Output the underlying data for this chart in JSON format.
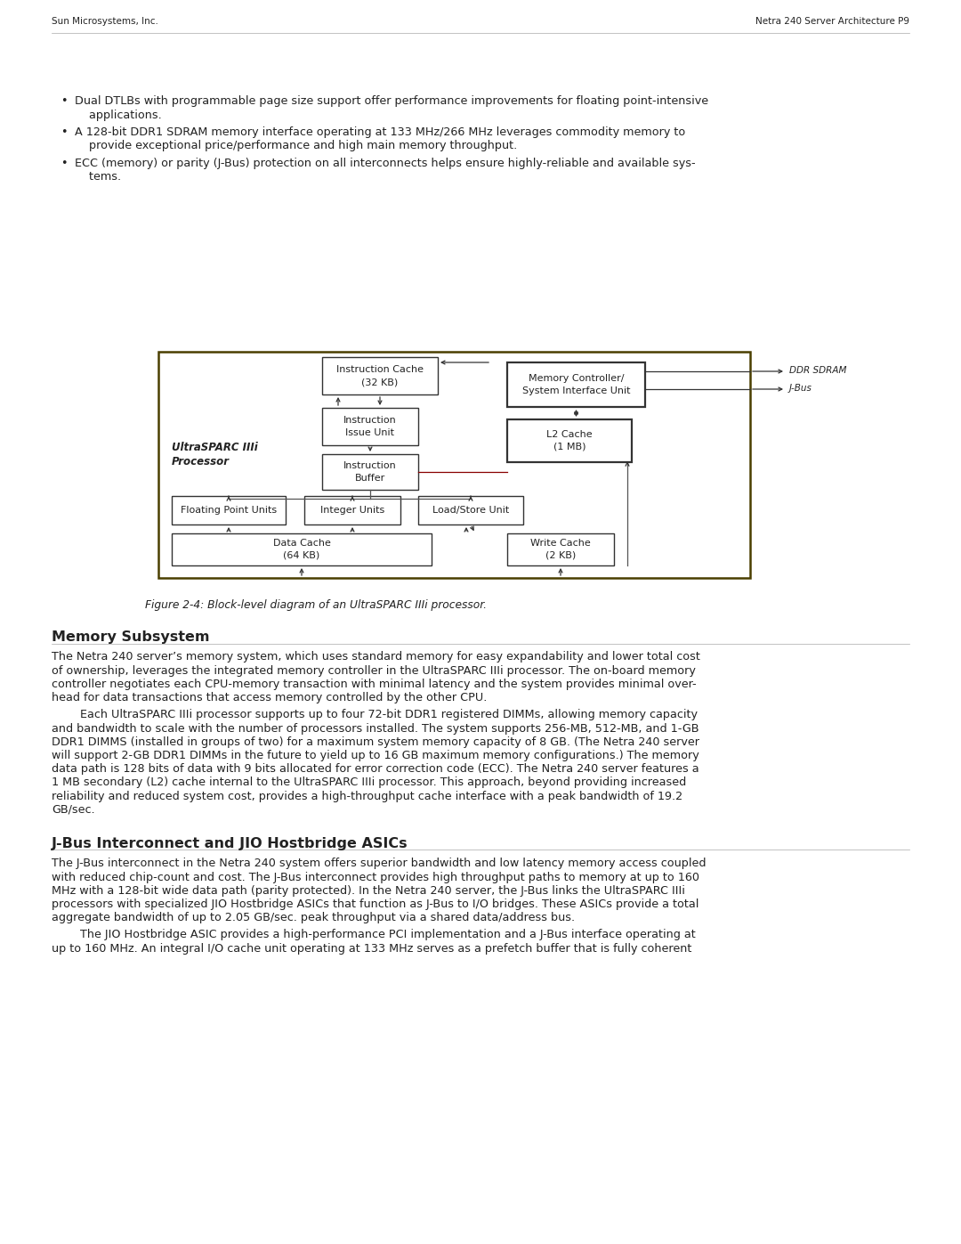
{
  "header_left": "Sun Microsystems, Inc.",
  "header_right": "Netra 240 Server Architecture P9",
  "bg_color": "#ffffff",
  "text_color": "#222222",
  "bullet1_line1": "Dual DTLBs with programmable page size support offer performance improvements for floating point-intensive",
  "bullet1_line2": "    applications.",
  "bullet2_line1": "A 128-bit DDR1 SDRAM memory interface operating at 133 MHz/266 MHz leverages commodity memory to",
  "bullet2_line2": "    provide exceptional price/performance and high main memory throughput.",
  "bullet3_line1": "ECC (memory) or parity (J-Bus) protection on all interconnects helps ensure highly-reliable and available sys-",
  "bullet3_line2": "    tems.",
  "figure_caption": "Figure 2-4: Block-level diagram of an UltraSPARC IIIi processor.",
  "section1_title": "Memory Subsystem",
  "section1_para1_lines": [
    "The Netra 240 server’s memory system, which uses standard memory for easy expandability and lower total cost",
    "of ownership, leverages the integrated memory controller in the UltraSPARC IIIi processor. The on-board memory",
    "controller negotiates each CPU-memory transaction with minimal latency and the system provides minimal over-",
    "head for data transactions that access memory controlled by the other CPU."
  ],
  "section1_para2_lines": [
    "        Each UltraSPARC IIIi processor supports up to four 72-bit DDR1 registered DIMMs, allowing memory capacity",
    "and bandwidth to scale with the number of processors installed. The system supports 256-MB, 512-MB, and 1-GB",
    "DDR1 DIMMS (installed in groups of two) for a maximum system memory capacity of 8 GB. (The Netra 240 server",
    "will support 2-GB DDR1 DIMMs in the future to yield up to 16 GB maximum memory configurations.) The memory",
    "data path is 128 bits of data with 9 bits allocated for error correction code (ECC). The Netra 240 server features a",
    "1 MB secondary (L2) cache internal to the UltraSPARC IIIi processor. This approach, beyond providing increased",
    "reliability and reduced system cost, provides a high-throughput cache interface with a peak bandwidth of 19.2",
    "GB/sec."
  ],
  "section2_title": "J-Bus Interconnect and JIO Hostbridge ASICs",
  "section2_para1_lines": [
    "The J-Bus interconnect in the Netra 240 system offers superior bandwidth and low latency memory access coupled",
    "with reduced chip-count and cost. The J-Bus interconnect provides high throughput paths to memory at up to 160",
    "MHz with a 128-bit wide data path (parity protected). In the Netra 240 server, the J-Bus links the UltraSPARC IIIi",
    "processors with specialized JIO Hostbridge ASICs that function as J-Bus to I/O bridges. These ASICs provide a total",
    "aggregate bandwidth of up to 2.05 GB/sec. peak throughput via a shared data/address bus."
  ],
  "section2_para2_lines": [
    "        The JIO Hostbridge ASIC provides a high-performance PCI implementation and a J-Bus interface operating at",
    "up to 160 MHz. An integral I/O cache unit operating at 133 MHz serves as a prefetch buffer that is fully coherent"
  ]
}
